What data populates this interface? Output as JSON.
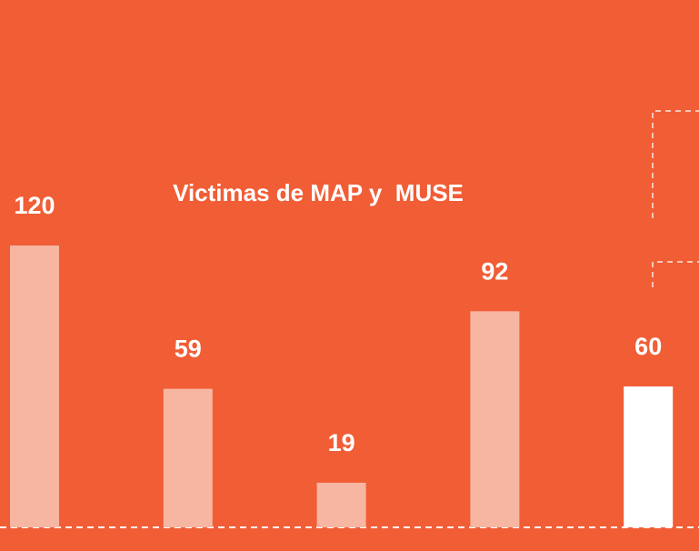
{
  "chart_data": {
    "type": "bar",
    "title": "Victimas de MAP y  MUSE",
    "categories": [
      null,
      null,
      null,
      null,
      null
    ],
    "values": [
      120,
      59,
      19,
      92,
      60
    ],
    "colors": [
      "#f7b6a2",
      "#f7b6a2",
      "#f7b6a2",
      "#f7b6a2",
      "#ffffff"
    ]
  }
}
